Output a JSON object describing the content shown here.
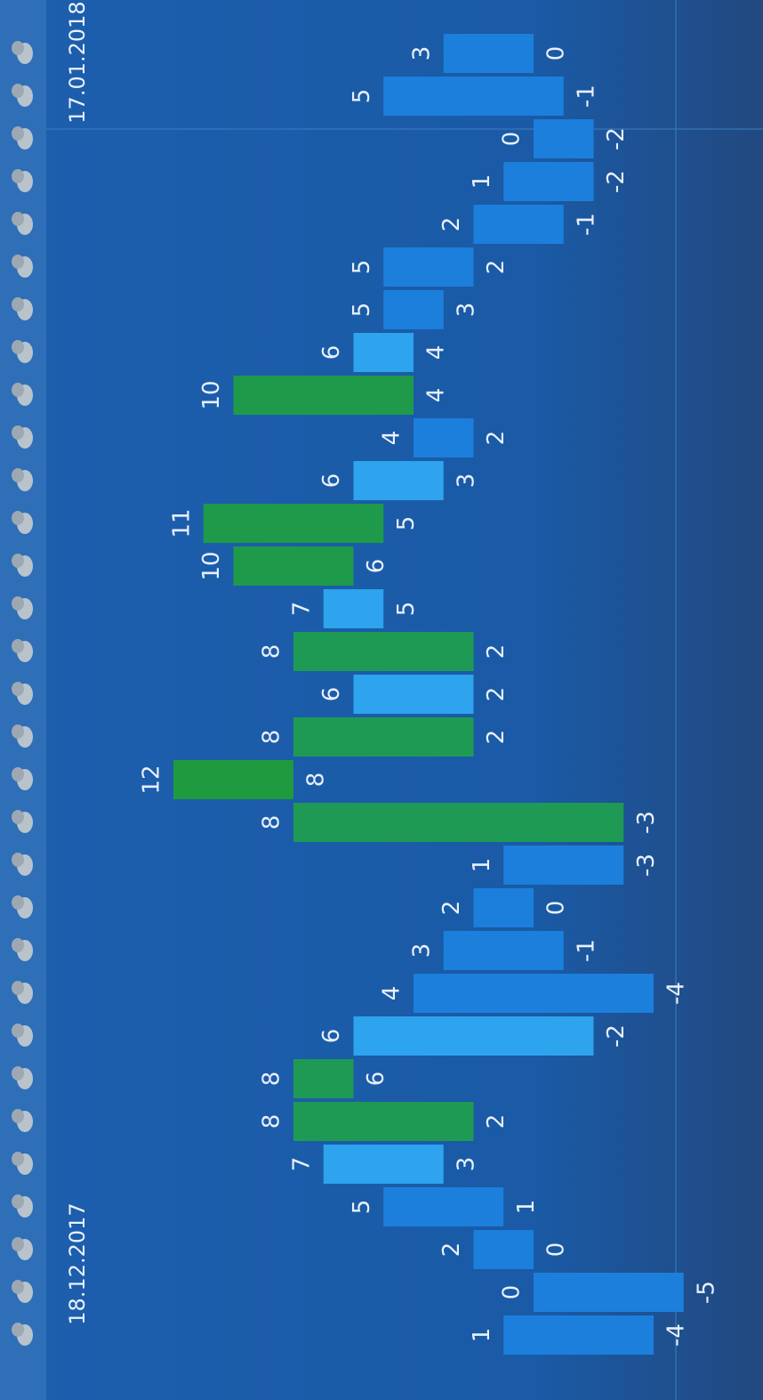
{
  "chart_data": {
    "type": "range_bar",
    "categories": [
      "18.12.2017",
      null,
      null,
      null,
      null,
      null,
      null,
      null,
      null,
      null,
      null,
      null,
      null,
      null,
      null,
      null,
      null,
      null,
      null,
      null,
      null,
      null,
      null,
      null,
      null,
      null,
      null,
      null,
      null,
      null,
      "17.01.2018"
    ],
    "highs": [
      1,
      0,
      2,
      5,
      7,
      8,
      8,
      6,
      4,
      3,
      2,
      1,
      8,
      12,
      8,
      6,
      8,
      7,
      10,
      11,
      6,
      4,
      10,
      6,
      5,
      5,
      2,
      1,
      0,
      5,
      3
    ],
    "lows": [
      -4,
      -5,
      0,
      1,
      3,
      2,
      6,
      -2,
      -4,
      -1,
      0,
      -3,
      -3,
      8,
      2,
      2,
      2,
      5,
      6,
      5,
      3,
      2,
      4,
      4,
      3,
      2,
      -1,
      -2,
      -2,
      -1,
      0
    ],
    "colors": [
      "#1c7fdc",
      "#1c7fdc",
      "#1c7fdc",
      "#1c7fdc",
      "#2ea3ee",
      "#1f9a55",
      "#1f9a55",
      "#2ea3ee",
      "#1c7fdc",
      "#1c7fdc",
      "#1c7fdc",
      "#1c7fdc",
      "#1f9a55",
      "#1f9a3f",
      "#1f9a55",
      "#2ea3ee",
      "#1f9a55",
      "#2ea3ee",
      "#1f9a4a",
      "#1f9a4a",
      "#2ea3ee",
      "#1c7fdc",
      "#1f9a4a",
      "#2ea3ee",
      "#1c7fdc",
      "#1c7fdc",
      "#1c7fdc",
      "#1c7fdc",
      "#1c7fdc",
      "#1c7fdc",
      "#1c7fdc"
    ]
  }
}
